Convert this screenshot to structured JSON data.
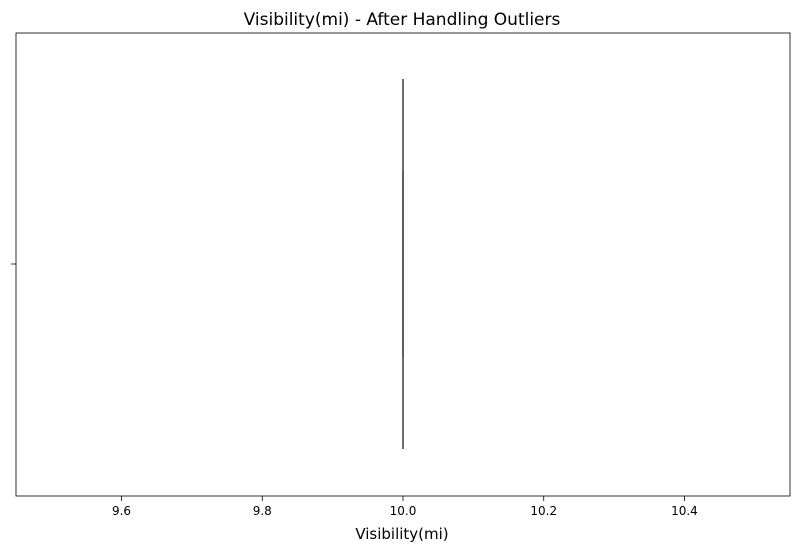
{
  "chart_data": {
    "type": "box",
    "title": "Visibility(mi) - After Handling Outliers",
    "xlabel": "Visibility(mi)",
    "ylabel": "",
    "xlim": [
      9.45,
      10.55
    ],
    "x_ticks": [
      "9.6",
      "9.8",
      "10.0",
      "10.2",
      "10.4"
    ],
    "x_tick_values": [
      9.6,
      9.8,
      10.0,
      10.2,
      10.4
    ],
    "grid": false,
    "orientation": "horizontal",
    "series": [
      {
        "min": 10.0,
        "q1": 10.0,
        "median": 10.0,
        "q3": 10.0,
        "max": 10.0
      }
    ],
    "colors": {
      "box": "#595959",
      "axes": "#000000"
    }
  }
}
